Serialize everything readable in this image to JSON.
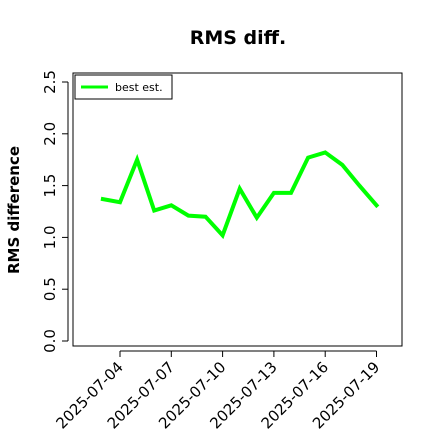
{
  "chart_data": {
    "type": "line",
    "title": "RMS diff.",
    "xlabel": "",
    "ylabel": "RMS difference",
    "ylim": [
      0.0,
      2.5
    ],
    "y_ticks": [
      "0.0",
      "0.5",
      "1.0",
      "1.5",
      "2.0",
      "2.5"
    ],
    "x_ticks": [
      "2025-07-04",
      "2025-07-07",
      "2025-07-10",
      "2025-07-13",
      "2025-07-16",
      "2025-07-19"
    ],
    "grid": false,
    "legend_position": "top-left",
    "series": [
      {
        "name": "best est.",
        "color": "#00ff00",
        "x": [
          "2025-07-03",
          "2025-07-04",
          "2025-07-05",
          "2025-07-06",
          "2025-07-07",
          "2025-07-08",
          "2025-07-09",
          "2025-07-10",
          "2025-07-11",
          "2025-07-12",
          "2025-07-13",
          "2025-07-14",
          "2025-07-15",
          "2025-07-16",
          "2025-07-17",
          "2025-07-18",
          "2025-07-19"
        ],
        "values": [
          1.37,
          1.34,
          1.75,
          1.26,
          1.31,
          1.21,
          1.2,
          1.02,
          1.47,
          1.19,
          1.43,
          1.43,
          1.77,
          1.82,
          1.7,
          1.5,
          1.31
        ]
      }
    ]
  }
}
